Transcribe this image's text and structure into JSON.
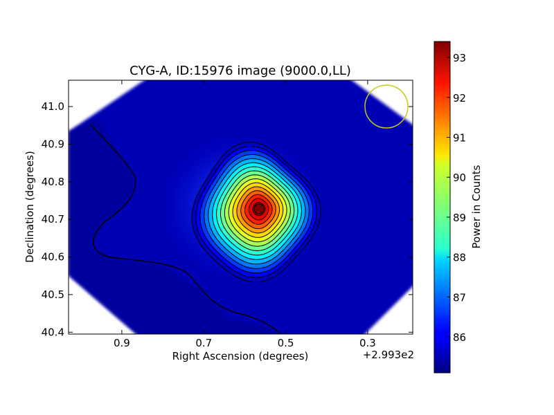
{
  "chart_data": {
    "type": "heatmap",
    "title": "CYG-A, ID:15976 image (9000.0,LL)",
    "xlabel": "Right Ascension (degrees)",
    "ylabel": "Declination (degrees)",
    "x_offset_label": "+2.993e2",
    "x_offset": 299.3,
    "xlim": [
      1.03,
      0.19
    ],
    "ylim": [
      40.395,
      41.07
    ],
    "x_ticks": [
      0.9,
      0.7,
      0.5,
      0.3
    ],
    "x_tick_labels": [
      "0.9",
      "0.7",
      "0.5",
      "0.3"
    ],
    "y_ticks": [
      40.4,
      40.5,
      40.6,
      40.7,
      40.8,
      40.9,
      41.0
    ],
    "y_tick_labels": [
      "40.4",
      "40.5",
      "40.6",
      "40.7",
      "40.8",
      "40.9",
      "41.0"
    ],
    "source_peak": {
      "ra": 0.565,
      "dec": 40.728,
      "value": 93.4
    },
    "colorbar": {
      "label": "Power in Counts",
      "colormap": "jet",
      "range": [
        85.1,
        93.4
      ],
      "ticks": [
        86,
        87,
        88,
        89,
        90,
        91,
        92,
        93
      ],
      "tick_labels": [
        "86",
        "87",
        "88",
        "89",
        "90",
        "91",
        "92",
        "93"
      ]
    },
    "contour_levels": [
      85.6,
      86.1,
      86.6,
      87.1,
      87.6,
      88.1,
      88.6,
      89.1,
      89.6,
      90.1,
      90.6,
      91.1,
      91.6,
      92.1,
      92.6,
      93.1
    ],
    "beam_circle": {
      "ra": 0.22,
      "dec": 41.0,
      "color": "#c8c81e"
    }
  }
}
